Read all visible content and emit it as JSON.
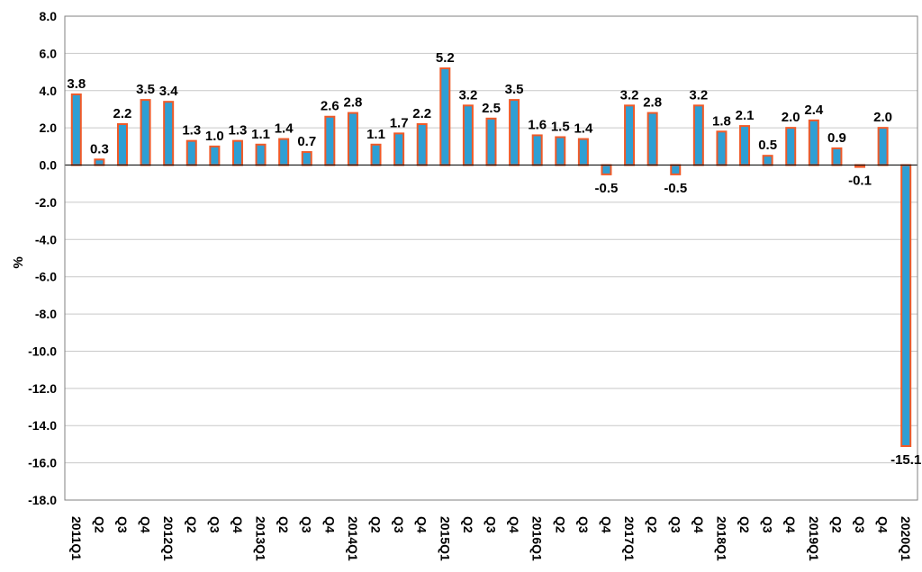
{
  "chart_data": {
    "type": "bar",
    "ylabel": "%",
    "ylim": [
      -18,
      8
    ],
    "ytick_step": 2,
    "ytick_labels": [
      "8.0",
      "6.0",
      "4.0",
      "2.0",
      "0.0",
      "-2.0",
      "-4.0",
      "-6.0",
      "-8.0",
      "-10.0",
      "-12.0",
      "-14.0",
      "-16.0",
      "-18.0"
    ],
    "grid": "horizontal",
    "bar_fill": "#2E9FD4",
    "bar_edge": "#F05A28",
    "categories": [
      "2011Q1",
      "Q2",
      "Q3",
      "Q4",
      "2012Q1",
      "Q2",
      "Q3",
      "Q4",
      "2013Q1",
      "Q2",
      "Q3",
      "Q4",
      "2014Q1",
      "Q2",
      "Q3",
      "Q4",
      "2015Q1",
      "Q2",
      "Q3",
      "Q4",
      "2016Q1",
      "Q2",
      "Q3",
      "Q4",
      "2017Q1",
      "Q2",
      "Q3",
      "Q4",
      "2018Q1",
      "Q2",
      "Q3",
      "Q4",
      "2019Q1",
      "Q2",
      "Q3",
      "Q4",
      "2020Q1"
    ],
    "values": [
      3.8,
      0.3,
      2.2,
      3.5,
      3.4,
      1.3,
      1.0,
      1.3,
      1.1,
      1.4,
      0.7,
      2.6,
      2.8,
      1.1,
      1.7,
      2.2,
      5.2,
      3.2,
      2.5,
      3.5,
      1.6,
      1.5,
      1.4,
      -0.5,
      3.2,
      2.8,
      -0.5,
      3.2,
      1.8,
      2.1,
      0.5,
      2.0,
      2.4,
      0.9,
      -0.1,
      2.0,
      -15.1
    ],
    "value_labels": [
      "3.8",
      "0.3",
      "2.2",
      "3.5",
      "3.4",
      "1.3",
      "1.0",
      "1.3",
      "1.1",
      "1.4",
      "0.7",
      "2.6",
      "2.8",
      "1.1",
      "1.7",
      "2.2",
      "5.2",
      "3.2",
      "2.5",
      "3.5",
      "1.6",
      "1.5",
      "1.4",
      "-0.5",
      "3.2",
      "2.8",
      "-0.5",
      "3.2",
      "1.8",
      "2.1",
      "0.5",
      "2.0",
      "2.4",
      "0.9",
      "-0.1",
      "2.0",
      "-15.1"
    ]
  }
}
